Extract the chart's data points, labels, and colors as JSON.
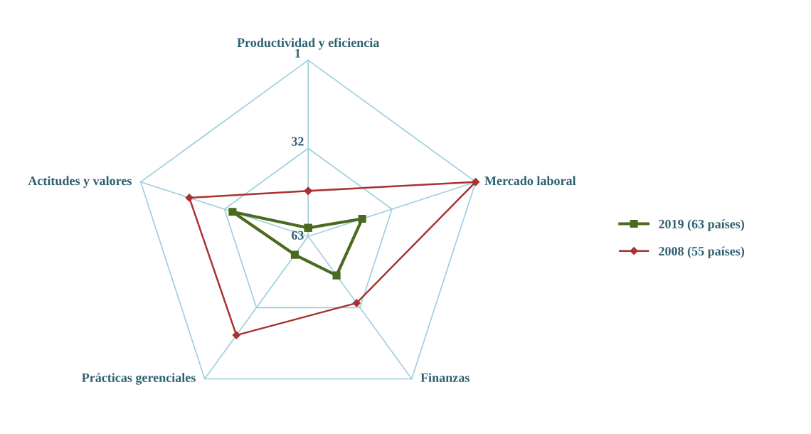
{
  "chart_data": {
    "type": "radar",
    "categories": [
      "Productividad y eficiencia",
      "Mercado laboral",
      "Finanzas",
      "Prácticas gerenciales",
      "Actitudes y valores"
    ],
    "ylim": [
      63,
      1
    ],
    "yticks": [
      1,
      32,
      63
    ],
    "grid": true,
    "legend": "right",
    "series": [
      {
        "name": "2019 (63 países)",
        "color": "#4a6b1f",
        "marker": "square",
        "values": [
          60,
          43,
          46,
          55,
          35
        ]
      },
      {
        "name": "2008 (55 países)",
        "color": "#a83232",
        "marker": "diamond",
        "values": [
          47,
          1,
          34,
          20,
          19
        ]
      }
    ]
  }
}
